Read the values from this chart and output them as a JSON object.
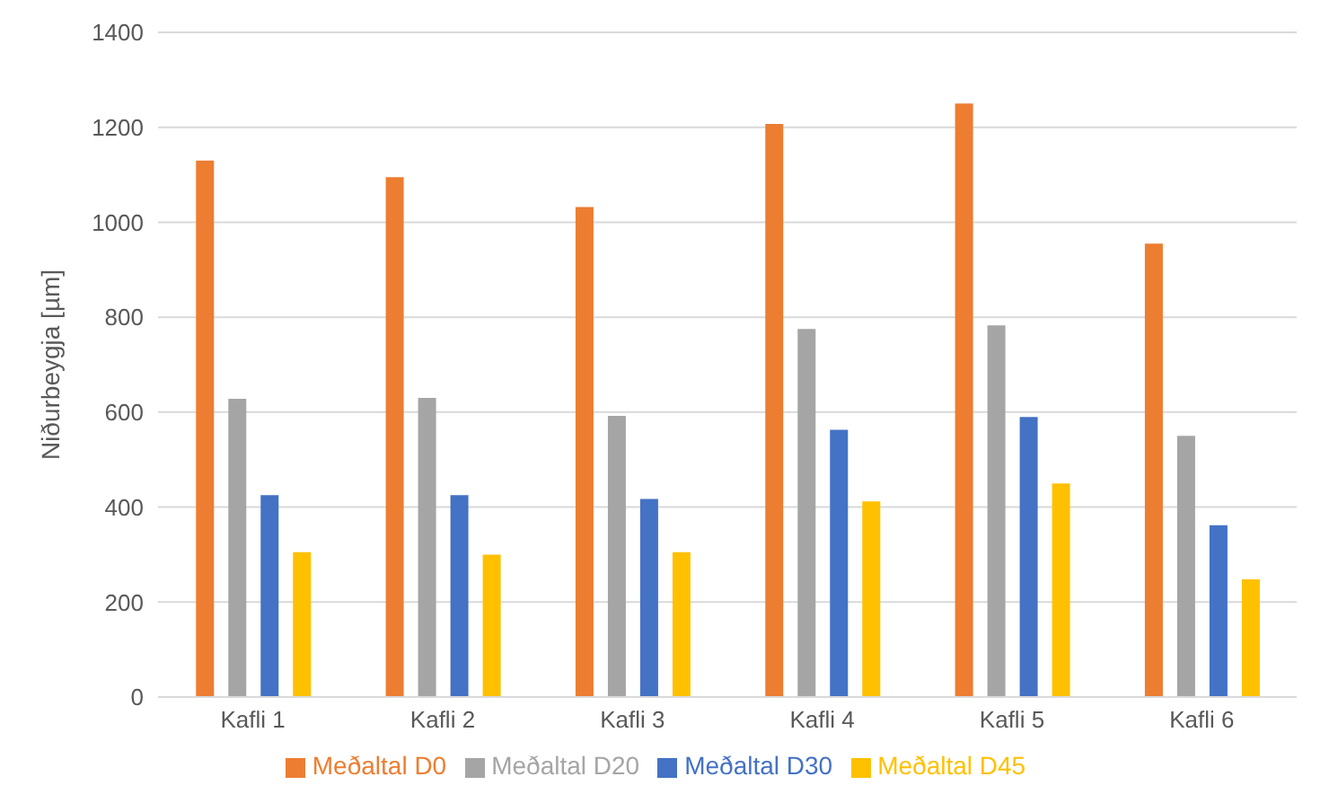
{
  "chart_data": {
    "type": "bar",
    "ylabel": "Niðurbeygja [µm]",
    "categories": [
      "Kafli 1",
      "Kafli 2",
      "Kafli 3",
      "Kafli 4",
      "Kafli 5",
      "Kafli 6"
    ],
    "series": [
      {
        "name": "Meðaltal D0",
        "color": "#ed7d31",
        "values": [
          1130,
          1095,
          1032,
          1207,
          1250,
          955
        ]
      },
      {
        "name": "Meðaltal D20",
        "color": "#a5a5a5",
        "values": [
          628,
          630,
          592,
          775,
          783,
          550
        ]
      },
      {
        "name": "Meðaltal D30",
        "color": "#4472c4",
        "values": [
          425,
          425,
          417,
          563,
          590,
          362
        ]
      },
      {
        "name": "Meðaltal D45",
        "color": "#ffc000",
        "values": [
          305,
          300,
          305,
          412,
          450,
          248
        ]
      }
    ],
    "ylim": [
      0,
      1400
    ],
    "yticks": [
      0,
      200,
      400,
      600,
      800,
      1000,
      1200,
      1400
    ],
    "grid": "y",
    "legend": "bottom"
  }
}
